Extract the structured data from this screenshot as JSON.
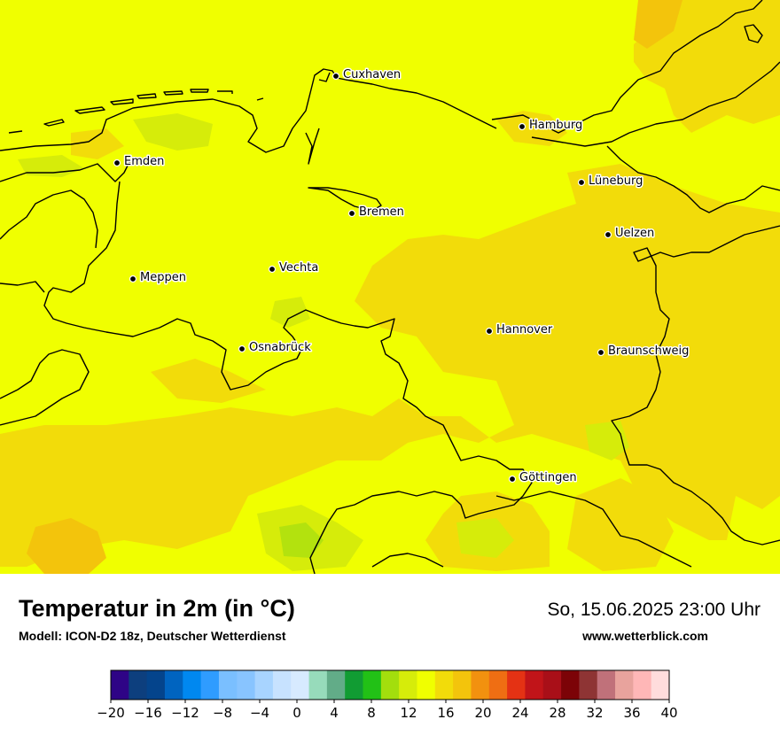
{
  "map": {
    "cities": [
      {
        "name": "Cuxhaven"
      },
      {
        "name": "Hamburg"
      },
      {
        "name": "Emden"
      },
      {
        "name": "Lüneburg"
      },
      {
        "name": "Bremen"
      },
      {
        "name": "Uelzen"
      },
      {
        "name": "Vechta"
      },
      {
        "name": "Meppen"
      },
      {
        "name": "Hannover"
      },
      {
        "name": "Osnabrück"
      },
      {
        "name": "Braunschweig"
      },
      {
        "name": "Göttingen"
      }
    ],
    "colors": {
      "base_field": "#f0ff00",
      "warm_field": "#f2dc0a",
      "warmer_field": "#f3c40c",
      "cool_field": "#d6ec0a",
      "coolest_field": "#b3e20e"
    }
  },
  "footer": {
    "title": "Temperatur in 2m (in °C)",
    "subtitle": "Modell: ICON-D2 18z, Deutscher Wetterdienst",
    "datetime": "So, 15.06.2025 23:00 Uhr",
    "website": "www.wetterblick.com"
  },
  "colorbar": {
    "min": -20,
    "max": 40,
    "step": 2,
    "tick_labels": [
      "−20",
      "−16",
      "−12",
      "−8",
      "−4",
      "0",
      "4",
      "8",
      "12",
      "16",
      "20",
      "24",
      "28",
      "32",
      "36",
      "40"
    ],
    "colors": [
      "#2e0486",
      "#0d3f7e",
      "#04448c",
      "#0064c0",
      "#0088f0",
      "#2f9cff",
      "#7abfff",
      "#88c4ff",
      "#a8d4ff",
      "#c7e2ff",
      "#d7eaff",
      "#97dbbb",
      "#62ac88",
      "#119c33",
      "#22c116",
      "#a3de0d",
      "#d6ec0a",
      "#f0ff00",
      "#f2dc0a",
      "#f3c40c",
      "#f2910f",
      "#ef6e13",
      "#e43214",
      "#c11419",
      "#a90f18",
      "#7c0307",
      "#8e3434",
      "#c0717a",
      "#e8a39d",
      "#ffb7b7",
      "#ffdcdc"
    ]
  }
}
